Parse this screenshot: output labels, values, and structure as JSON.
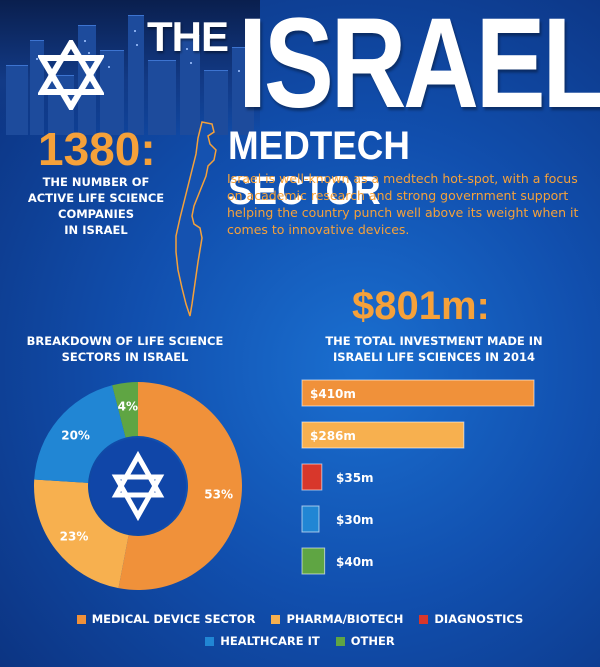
{
  "header": {
    "title_the": "THE",
    "title_main": "ISRAELI",
    "title_sub": "MEDTECH SECTOR"
  },
  "stat_companies": {
    "value": "1380:",
    "caption_lines": [
      "THE NUMBER OF",
      "ACTIVE LIFE SCIENCE",
      "COMPANIES",
      "IN ISRAEL"
    ]
  },
  "intro_text": "Israel is well-known as a medtech hot-spot, with a focus on academic research and strong government support helping the country punch well above its weight when it comes to innovative devices.",
  "stat_investment": {
    "value": "$801m:",
    "caption_lines": [
      "THE TOTAL INVESTMENT MADE IN",
      "ISRAELI LIFE SCIENCES IN 2014"
    ]
  },
  "breakdown_caption_lines": [
    "BREAKDOWN OF LIFE SCIENCE",
    "SECTORS IN ISRAEL"
  ],
  "colors": {
    "orange": "#f0913a",
    "light_orange": "#f7b04f",
    "red": "#d8372b",
    "blue": "#2186d4",
    "green": "#5fa543"
  },
  "chart_data": [
    {
      "type": "pie",
      "categories": [
        "MEDICAL DEVICE SECTOR",
        "PHARMA/BIOTECH",
        "HEALTHCARE IT",
        "OTHER"
      ],
      "values": [
        53,
        23,
        20,
        4
      ],
      "labels": [
        "53%",
        "23%",
        "20%",
        "4%"
      ],
      "colors": [
        "#f0913a",
        "#f7b04f",
        "#2186d4",
        "#5fa543"
      ]
    },
    {
      "type": "bar",
      "orientation": "horizontal",
      "categories": [
        "MEDICAL DEVICE SECTOR",
        "PHARMA/BIOTECH",
        "DIAGNOSTICS",
        "HEALTHCARE IT",
        "OTHER"
      ],
      "values": [
        410,
        286,
        35,
        30,
        40
      ],
      "labels": [
        "$410m",
        "$286m",
        "$35m",
        "$30m",
        "$40m"
      ],
      "colors": [
        "#f0913a",
        "#f7b04f",
        "#d8372b",
        "#2186d4",
        "#5fa543"
      ]
    }
  ],
  "legend": [
    {
      "label": "MEDICAL DEVICE SECTOR",
      "color": "#f0913a"
    },
    {
      "label": "PHARMA/BIOTECH",
      "color": "#f7b04f"
    },
    {
      "label": "DIAGNOSTICS",
      "color": "#d8372b"
    },
    {
      "label": "HEALTHCARE IT",
      "color": "#2186d4"
    },
    {
      "label": "OTHER",
      "color": "#5fa543"
    }
  ]
}
